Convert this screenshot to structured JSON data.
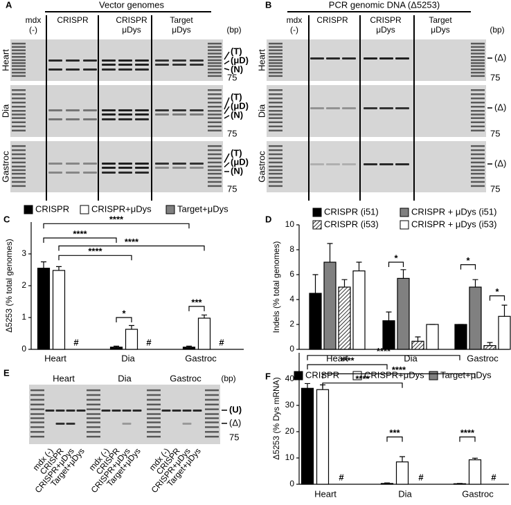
{
  "panels": {
    "A": {
      "letter": "A",
      "title": "Vector genomes",
      "lanes": [
        [
          "mdx",
          "(-)"
        ],
        [
          "CRISPR"
        ],
        [
          "CRISPR",
          "μDys"
        ],
        [
          "Target",
          "μDys"
        ]
      ],
      "unit": "(bp)",
      "rows": [
        "Heart",
        "Dia",
        "Gastroc"
      ],
      "band_labels": [
        "(T)",
        "(μD)",
        "(N)"
      ],
      "size_label": "75"
    },
    "B": {
      "letter": "B",
      "title": "PCR genomic DNA (Δ5253)",
      "lanes": [
        [
          "mdx",
          "(-)"
        ],
        [
          "CRISPR"
        ],
        [
          "CRISPR",
          "μDys"
        ],
        [
          "Target",
          "μDys"
        ]
      ],
      "unit": "(bp)",
      "rows": [
        "Heart",
        "Dia",
        "Gastroc"
      ],
      "band_labels": [
        "(Δ)"
      ],
      "size_label": "75"
    },
    "E": {
      "letter": "E",
      "groups": [
        "Heart",
        "Dia",
        "Gastroc"
      ],
      "unit": "(bp)",
      "band_labels": [
        "(U)",
        "(Δ)"
      ],
      "size_label": "75",
      "lanes": [
        "mdx (-)",
        "CRISPR",
        "CRISPR+μDys",
        "Target+μDys"
      ]
    }
  },
  "chart_data": [
    {
      "type": "bar",
      "letter": "C",
      "y_label": "Δ5253 (% total genomes)",
      "categories": [
        "Heart",
        "Dia",
        "Gastroc"
      ],
      "series": [
        {
          "name": "CRISPR",
          "color": "#000000",
          "values": [
            2.55,
            0.07,
            0.07
          ],
          "errors": [
            0.2,
            0.03,
            0.03
          ]
        },
        {
          "name": "CRISPR+μDys",
          "color": "#ffffff",
          "values": [
            2.48,
            0.63,
            0.98
          ],
          "errors": [
            0.12,
            0.12,
            0.1
          ]
        },
        {
          "name": "Target+μDys",
          "color": "#808080",
          "values": [
            0,
            0,
            0
          ]
        }
      ],
      "ylim": [
        0,
        4
      ],
      "yticks": [
        0,
        1,
        2,
        3
      ],
      "annotations": [
        "****",
        "****",
        "****",
        "****",
        "*",
        "***",
        "#",
        "#",
        "#"
      ]
    },
    {
      "type": "bar",
      "letter": "D",
      "y_label": "Indels (% total genomes)",
      "categories": [
        "Heart",
        "Dia",
        "Gastroc"
      ],
      "series": [
        {
          "name": "CRISPR (i51)",
          "color": "#000000",
          "values": [
            4.5,
            2.3,
            2.0
          ],
          "errors": [
            1.5,
            0.7,
            0
          ]
        },
        {
          "name": "CRISPR + μDys (i51)",
          "color": "#808080",
          "values": [
            7.0,
            5.7,
            5.0
          ],
          "errors": [
            1.5,
            0.7,
            0.6
          ]
        },
        {
          "name": "CRISPR (i53)",
          "color": "#ffffff",
          "hatch": true,
          "values": [
            5.0,
            0.65,
            0.3
          ],
          "errors": [
            0.6,
            0.35,
            0.25
          ]
        },
        {
          "name": "CRISPR + μDys (i53)",
          "color": "#ffffff",
          "values": [
            6.3,
            2.0,
            2.65
          ],
          "errors": [
            0.7,
            0,
            0.9
          ]
        }
      ],
      "ylim": [
        0,
        10
      ],
      "yticks": [
        0,
        2,
        4,
        6,
        8,
        10
      ],
      "annotations": [
        "*",
        "*",
        "*"
      ]
    },
    {
      "type": "bar",
      "letter": "F",
      "y_label": "Δ5253 (% Dys mRNA)",
      "categories": [
        "Heart",
        "Dia",
        "Gastroc"
      ],
      "series": [
        {
          "name": "CRISPR",
          "color": "#000000",
          "values": [
            36.5,
            0.3,
            0.2
          ],
          "errors": [
            1.8,
            0.2,
            0.1
          ]
        },
        {
          "name": "CRISPR+μDys",
          "color": "#ffffff",
          "values": [
            36.0,
            8.5,
            9.3
          ],
          "errors": [
            1.8,
            2.0,
            0.6
          ]
        },
        {
          "name": "Target+μDys",
          "color": "#808080",
          "values": [
            0,
            0,
            0
          ]
        }
      ],
      "ylim": [
        0,
        50
      ],
      "yticks": [
        0,
        10,
        20,
        30,
        40
      ],
      "annotations": [
        "****",
        "****",
        "****",
        "****",
        "***",
        "****",
        "#",
        "#",
        "#"
      ]
    }
  ]
}
